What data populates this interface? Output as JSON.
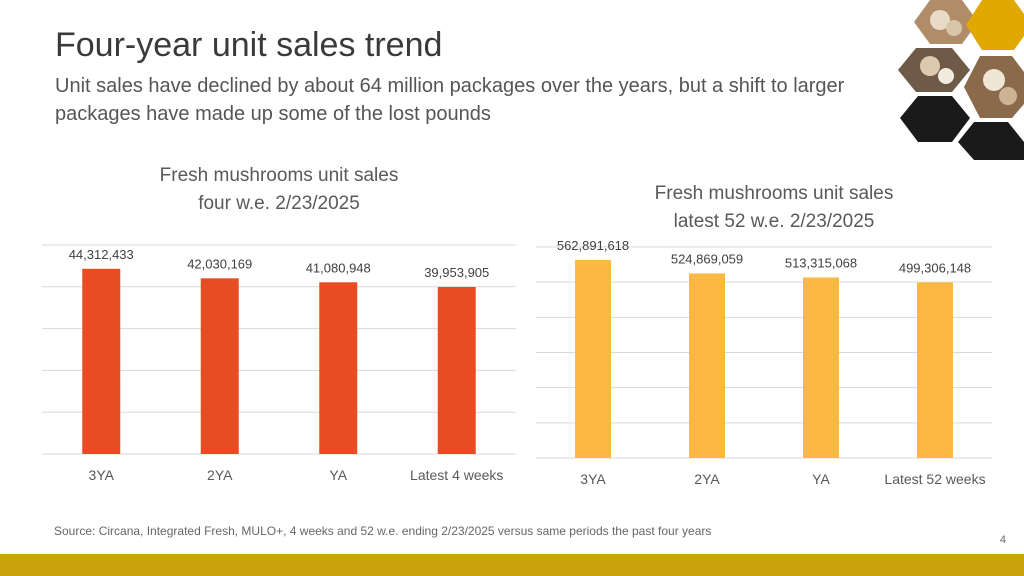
{
  "header": {
    "title": "Four-year unit sales trend",
    "subtitle": "Unit sales have declined by about 64 million packages over the years, but a shift to larger packages have made up some of the lost pounds"
  },
  "footer": {
    "source": "Source: Circana, Integrated Fresh, MULO+, 4 weeks and 52 w.e. ending 2/23/2025 versus same periods the past four years",
    "page_number": "4"
  },
  "decor": {
    "hexagon_images": [
      "mushroom-photo",
      "mushroom-photo",
      "mushroom-photo"
    ],
    "colors": {
      "hex_gold": "#e0a800",
      "hex_dark": "#1a1a1a",
      "footer_bar": "#c8a40a"
    }
  },
  "chart_data": [
    {
      "type": "bar",
      "title_lines": [
        "Fresh mushrooms unit sales",
        "four w.e. 2/23/2025"
      ],
      "categories": [
        "3YA",
        "2YA",
        "YA",
        "Latest 4 weeks"
      ],
      "values": [
        44312433,
        42030169,
        41080948,
        39953905
      ],
      "value_labels": [
        "44,312,433",
        "42,030,169",
        "41,080,948",
        "39,953,905"
      ],
      "ylim": [
        0,
        50000000
      ],
      "gridlines": 5,
      "grid": true,
      "color": "#e84c22"
    },
    {
      "type": "bar",
      "title_lines": [
        "Fresh mushrooms unit sales",
        "latest 52 w.e. 2/23/2025"
      ],
      "categories": [
        "3YA",
        "2YA",
        "YA",
        "Latest 52 weeks"
      ],
      "values": [
        562891618,
        524869059,
        513315068,
        499306148
      ],
      "value_labels": [
        "562,891,618",
        "524,869,059",
        "513,315,068",
        "499,306,148"
      ],
      "ylim": [
        0,
        600000000
      ],
      "gridlines": 6,
      "grid": true,
      "color": "#fbb943"
    }
  ]
}
